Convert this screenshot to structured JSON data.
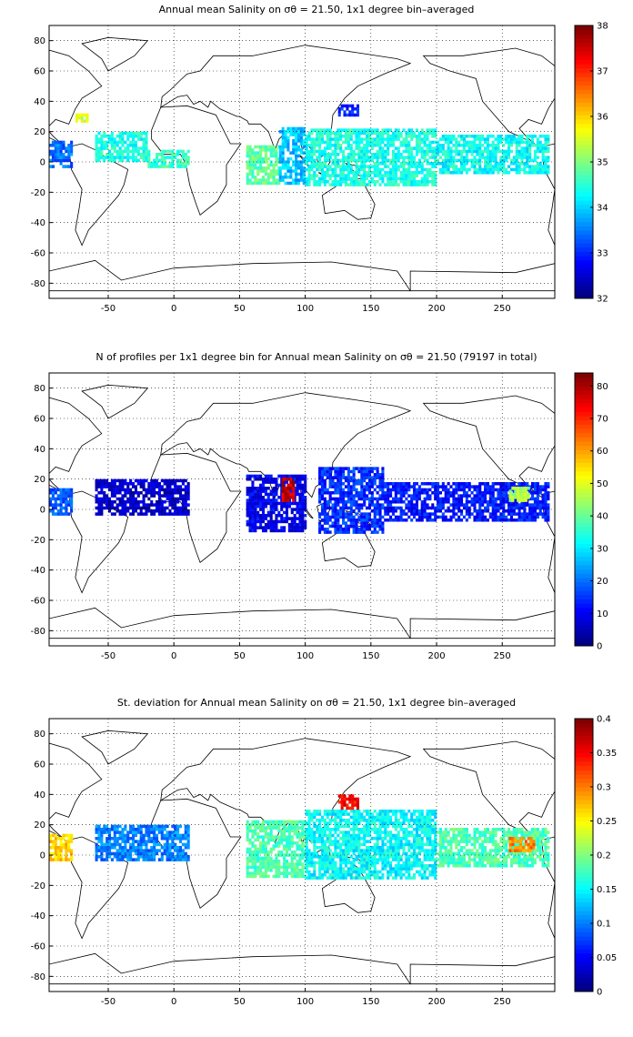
{
  "colors": {
    "land": "#ffffff",
    "coast": "#000000",
    "jet": [
      "#00008f",
      "#0000ff",
      "#0080ff",
      "#00ffff",
      "#80ff80",
      "#ffff00",
      "#ff8000",
      "#ff0000",
      "#800000"
    ]
  },
  "chart_data": [
    {
      "type": "heatmap",
      "title": "Annual mean Salinity on σθ = 21.50, 1x1 degree bin–averaged",
      "x_ticks": [
        -50,
        0,
        50,
        100,
        150,
        200,
        250
      ],
      "y_ticks": [
        80,
        60,
        40,
        20,
        0,
        -20,
        -40,
        -60,
        -80
      ],
      "xlim": [
        -95,
        290
      ],
      "ylim": [
        -90,
        90
      ],
      "grid": true,
      "colorbar": {
        "ticks": [
          38,
          37,
          36,
          35,
          34,
          33,
          32
        ],
        "range": [
          32,
          38
        ]
      },
      "regions": [
        {
          "lon": [
            -95,
            -78
          ],
          "lat": [
            -4,
            14
          ],
          "value": 33.4
        },
        {
          "lon": [
            -60,
            -20
          ],
          "lat": [
            0,
            20
          ],
          "value": 34.4
        },
        {
          "lon": [
            -20,
            12
          ],
          "lat": [
            -4,
            8
          ],
          "value": 34.6
        },
        {
          "lon": [
            55,
            80
          ],
          "lat": [
            -15,
            10
          ],
          "value": 34.8
        },
        {
          "lon": [
            80,
            100
          ],
          "lat": [
            -15,
            22
          ],
          "value": 33.9
        },
        {
          "lon": [
            100,
            200
          ],
          "lat": [
            -16,
            22
          ],
          "value": 34.4
        },
        {
          "lon": [
            200,
            285
          ],
          "lat": [
            -8,
            18
          ],
          "value": 34.3
        },
        {
          "lon": [
            125,
            140
          ],
          "lat": [
            30,
            38
          ],
          "value": 33.0
        },
        {
          "lon": [
            -75,
            -65
          ],
          "lat": [
            26,
            32
          ],
          "value": 35.5
        }
      ]
    },
    {
      "type": "heatmap",
      "title": "N of profiles per 1x1 degree bin for Annual mean Salinity on σθ = 21.50 (79197 in total)",
      "x_ticks": [
        -50,
        0,
        50,
        100,
        150,
        200,
        250
      ],
      "y_ticks": [
        80,
        60,
        40,
        20,
        0,
        -20,
        -40,
        -60,
        -80
      ],
      "xlim": [
        -95,
        290
      ],
      "ylim": [
        -90,
        90
      ],
      "grid": true,
      "colorbar": {
        "ticks": [
          80,
          70,
          60,
          50,
          40,
          30,
          20,
          10,
          0
        ],
        "range": [
          0,
          84
        ]
      },
      "regions": [
        {
          "lon": [
            -95,
            -78
          ],
          "lat": [
            -4,
            14
          ],
          "value": 18
        },
        {
          "lon": [
            -60,
            12
          ],
          "lat": [
            -4,
            20
          ],
          "value": 6
        },
        {
          "lon": [
            55,
            100
          ],
          "lat": [
            -15,
            22
          ],
          "value": 9
        },
        {
          "lon": [
            82,
            92
          ],
          "lat": [
            5,
            20
          ],
          "value": 78
        },
        {
          "lon": [
            110,
            160
          ],
          "lat": [
            -16,
            28
          ],
          "value": 14
        },
        {
          "lon": [
            160,
            285
          ],
          "lat": [
            -8,
            18
          ],
          "value": 12
        },
        {
          "lon": [
            255,
            270
          ],
          "lat": [
            5,
            15
          ],
          "value": 45
        }
      ]
    },
    {
      "type": "heatmap",
      "title": "St. deviation for Annual mean Salinity on σθ = 21.50, 1x1 degree bin–averaged",
      "x_ticks": [
        -50,
        0,
        50,
        100,
        150,
        200,
        250
      ],
      "y_ticks": [
        80,
        60,
        40,
        20,
        0,
        -20,
        -40,
        -60,
        -80
      ],
      "xlim": [
        -95,
        290
      ],
      "ylim": [
        -90,
        90
      ],
      "grid": true,
      "colorbar": {
        "ticks": [
          0.4,
          0.35,
          0.3,
          0.25,
          0.2,
          0.15,
          0.1,
          0.05,
          0
        ],
        "range": [
          0,
          0.4
        ]
      },
      "regions": [
        {
          "lon": [
            -95,
            -78
          ],
          "lat": [
            -4,
            14
          ],
          "value": 0.27
        },
        {
          "lon": [
            -60,
            12
          ],
          "lat": [
            -4,
            20
          ],
          "value": 0.1
        },
        {
          "lon": [
            55,
            100
          ],
          "lat": [
            -15,
            22
          ],
          "value": 0.18
        },
        {
          "lon": [
            100,
            200
          ],
          "lat": [
            -16,
            30
          ],
          "value": 0.15
        },
        {
          "lon": [
            200,
            285
          ],
          "lat": [
            -8,
            18
          ],
          "value": 0.18
        },
        {
          "lon": [
            125,
            140
          ],
          "lat": [
            30,
            40
          ],
          "value": 0.35
        },
        {
          "lon": [
            255,
            275
          ],
          "lat": [
            2,
            12
          ],
          "value": 0.3
        }
      ]
    }
  ]
}
